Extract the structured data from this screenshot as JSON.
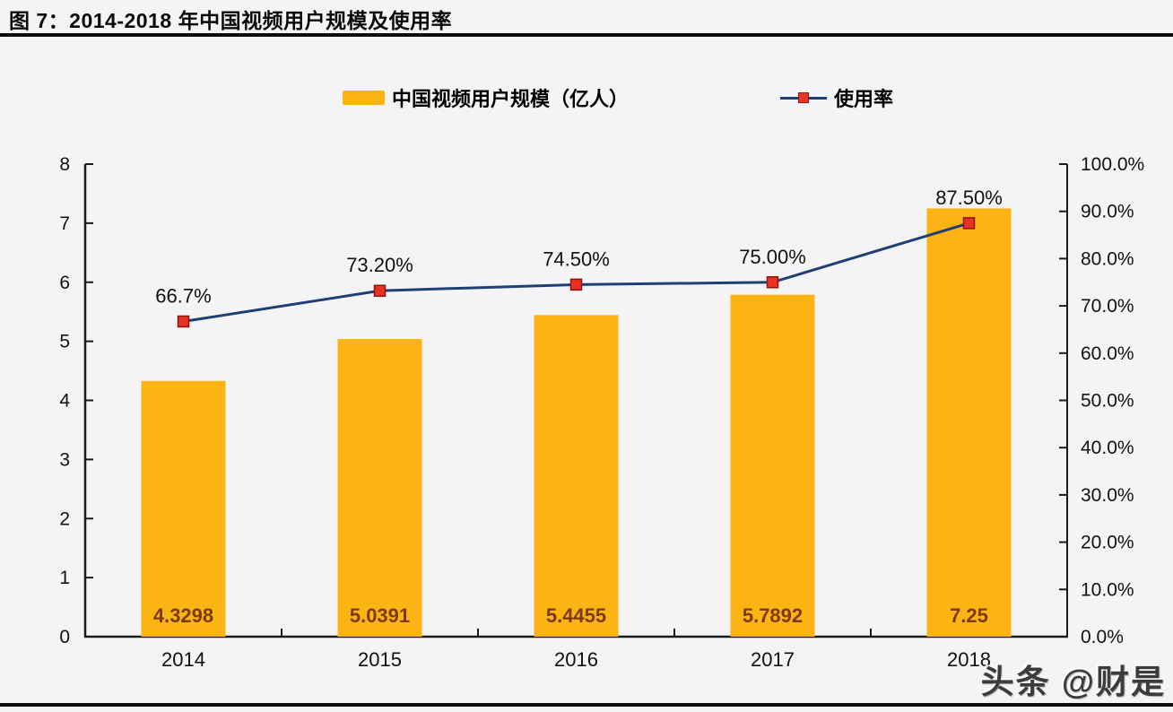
{
  "title": "图 7：2014-2018 年中国视频用户规模及使用率",
  "watermark": "头条 @财是",
  "colors": {
    "bar": "#FCB414",
    "bar_label": "#7C3A0F",
    "line": "#1F3F74",
    "marker_fill": "#E73323",
    "marker_border": "#8F150B",
    "axis": "#1A1A1A",
    "text": "#111111"
  },
  "chart_data": {
    "type": "bar+line",
    "title": "2014-2018 年中国视频用户规模及使用率",
    "categories": [
      "2014",
      "2015",
      "2016",
      "2017",
      "2018"
    ],
    "series": [
      {
        "name": "中国视频用户规模（亿人）",
        "type": "bar",
        "axis": "left",
        "values": [
          4.3298,
          5.0391,
          5.4455,
          5.7892,
          7.25
        ],
        "labels": [
          "4.3298",
          "5.0391",
          "5.4455",
          "5.7892",
          "7.25"
        ]
      },
      {
        "name": "使用率",
        "type": "line",
        "axis": "right",
        "values": [
          66.7,
          73.2,
          74.5,
          75.0,
          87.5
        ],
        "labels": [
          "66.7%",
          "73.20%",
          "74.50%",
          "75.00%",
          "87.50%"
        ]
      }
    ],
    "left_axis": {
      "min": 0,
      "max": 8,
      "ticks": [
        "0",
        "1",
        "2",
        "3",
        "4",
        "5",
        "6",
        "7",
        "8"
      ]
    },
    "right_axis": {
      "min": 0,
      "max": 100,
      "ticks": [
        "0.0%",
        "10.0%",
        "20.0%",
        "30.0%",
        "40.0%",
        "50.0%",
        "60.0%",
        "70.0%",
        "80.0%",
        "90.0%",
        "100.0%"
      ]
    },
    "legend_position": "top",
    "grid": false
  }
}
